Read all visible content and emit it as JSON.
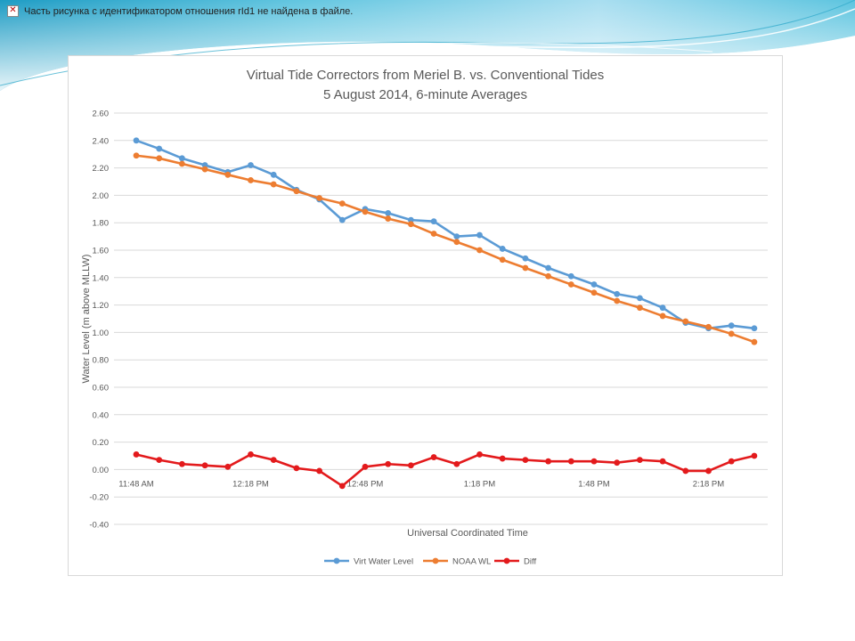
{
  "slide": {
    "broken_image_text": "Часть рисунка с идентификатором отношения rId1 не найдена в файле."
  },
  "colors": {
    "banner_light": "#bfe6f3",
    "banner_mid": "#6fcde4",
    "banner_dark": "#2aa7c9",
    "grid": "#d9d9d9",
    "text": "#595959"
  },
  "chart_data": {
    "type": "line",
    "title": "Virtual Tide Correctors from Meriel B. vs. Conventional Tides",
    "subtitle": "5 August 2014, 6-minute Averages",
    "xlabel": "Universal Coordinated Time",
    "ylabel": "Water Level (m above MLLW)",
    "ylim": [
      -0.4,
      2.6
    ],
    "y_ticks": [
      "2.60",
      "2.40",
      "2.20",
      "2.00",
      "1.80",
      "1.60",
      "1.40",
      "1.20",
      "1.00",
      "0.80",
      "0.60",
      "0.40",
      "0.20",
      "0.00",
      "-0.20",
      "-0.40"
    ],
    "x_ticks": [
      "11:48 AM",
      "12:18 PM",
      "12:48 PM",
      "1:18 PM",
      "1:48 PM",
      "2:18 PM"
    ],
    "x": [
      "11:48 AM",
      "11:54 AM",
      "12:00 PM",
      "12:06 PM",
      "12:12 PM",
      "12:18 PM",
      "12:24 PM",
      "12:30 PM",
      "12:36 PM",
      "12:42 PM",
      "12:48 PM",
      "12:54 PM",
      "1:00 PM",
      "1:06 PM",
      "1:12 PM",
      "1:18 PM",
      "1:24 PM",
      "1:30 PM",
      "1:36 PM",
      "1:42 PM",
      "1:48 PM",
      "1:54 PM",
      "2:00 PM",
      "2:06 PM",
      "2:12 PM",
      "2:18 PM",
      "2:24 PM",
      "2:30 PM"
    ],
    "grid": true,
    "legend_position": "bottom",
    "series": [
      {
        "name": "Virt Water Level",
        "color": "#5b9bd5",
        "values": [
          2.4,
          2.34,
          2.27,
          2.22,
          2.17,
          2.22,
          2.15,
          2.04,
          1.97,
          1.82,
          1.9,
          1.87,
          1.82,
          1.81,
          1.7,
          1.71,
          1.61,
          1.54,
          1.47,
          1.41,
          1.35,
          1.28,
          1.25,
          1.18,
          1.07,
          1.03,
          1.05,
          1.03
        ]
      },
      {
        "name": "NOAA WL",
        "color": "#ed7d31",
        "values": [
          2.29,
          2.27,
          2.23,
          2.19,
          2.15,
          2.11,
          2.08,
          2.03,
          1.98,
          1.94,
          1.88,
          1.83,
          1.79,
          1.72,
          1.66,
          1.6,
          1.53,
          1.47,
          1.41,
          1.35,
          1.29,
          1.23,
          1.18,
          1.12,
          1.08,
          1.04,
          0.99,
          0.93
        ]
      },
      {
        "name": "Diff",
        "color": "#e31a1c",
        "values": [
          0.11,
          0.07,
          0.04,
          0.03,
          0.02,
          0.11,
          0.07,
          0.01,
          -0.01,
          -0.12,
          0.02,
          0.04,
          0.03,
          0.09,
          0.04,
          0.11,
          0.08,
          0.07,
          0.06,
          0.06,
          0.06,
          0.05,
          0.07,
          0.06,
          -0.01,
          -0.01,
          0.06,
          0.1
        ]
      }
    ]
  }
}
